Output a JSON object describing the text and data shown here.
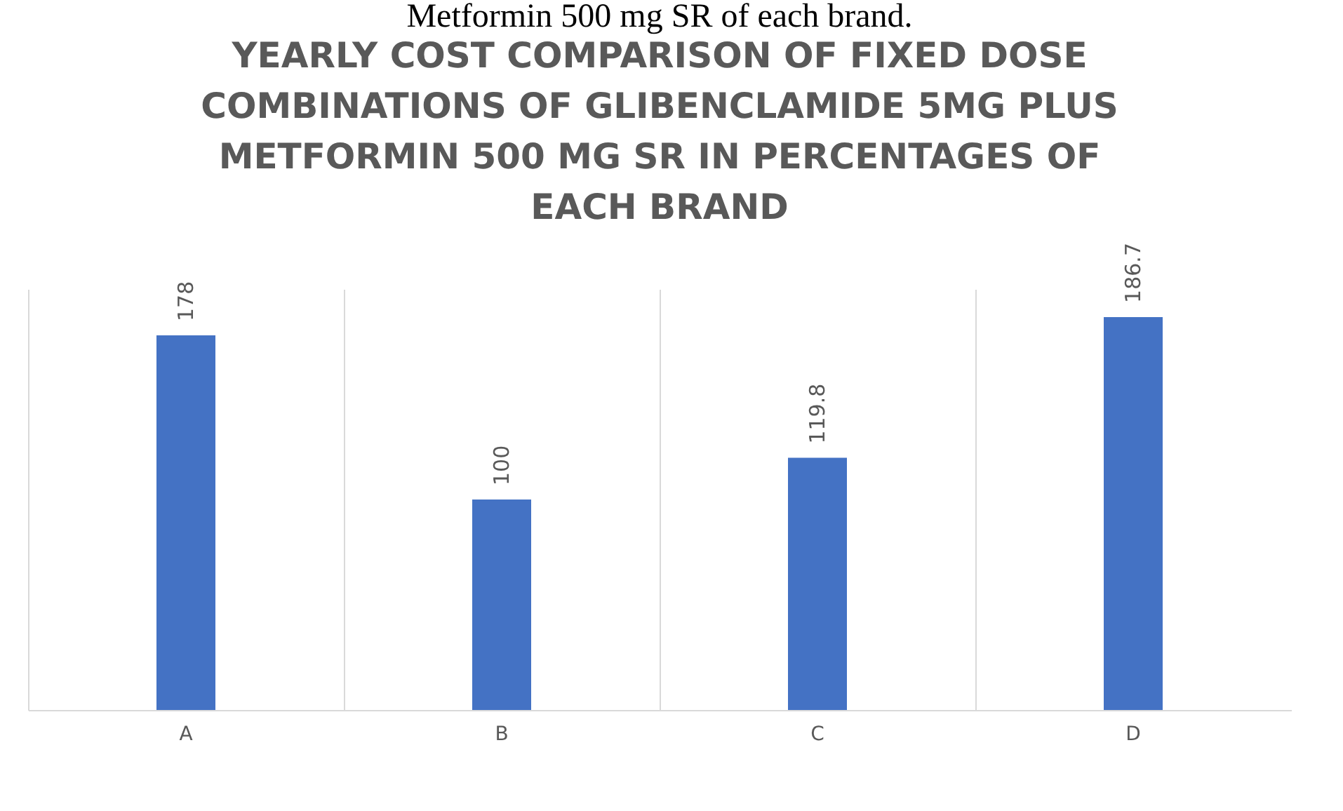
{
  "chart_data": {
    "type": "bar",
    "title": [
      "YEARLY COST COMPARISON OF FIXED DOSE",
      "COMBINATIONS OF GLIBENCLAMIDE 5MG PLUS",
      "METFORMIN 500 MG SR IN PERCENTAGES OF",
      "EACH BRAND"
    ],
    "annotations": [
      "Metformin 500 mg SR of each brand."
    ],
    "categories": [
      "A",
      "B",
      "C",
      "D"
    ],
    "values": [
      178,
      100,
      119.8,
      186.7
    ],
    "color": "#4472c4",
    "data_labels": true,
    "grid": "x"
  }
}
